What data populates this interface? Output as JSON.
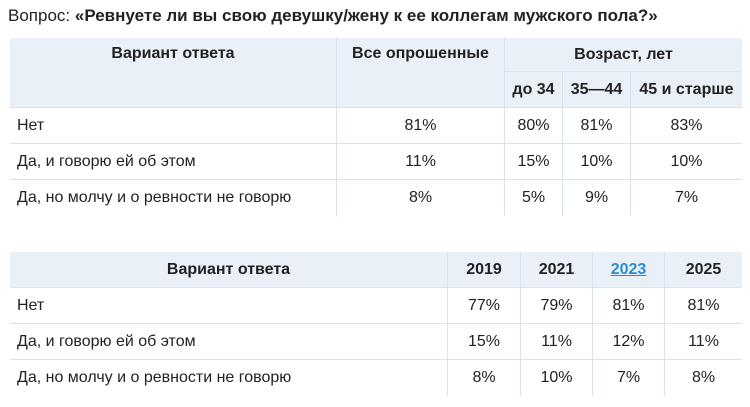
{
  "question": {
    "label": "Вопрос: ",
    "text": "«Ревнуете ли вы свою девушку/жену к ее коллегам мужского пола?»"
  },
  "table1": {
    "col_answer": "Вариант ответа",
    "col_all": "Все опрошенные",
    "col_age_group": "Возраст, лет",
    "age_columns": [
      "до 34",
      "35—44",
      "45 и старше"
    ],
    "rows": [
      {
        "label": "Нет",
        "all": "81%",
        "ages": [
          "80%",
          "81%",
          "83%"
        ]
      },
      {
        "label": "Да, и говорю ей об этом",
        "all": "11%",
        "ages": [
          "15%",
          "10%",
          "10%"
        ]
      },
      {
        "label": "Да, но молчу и о ревности не говорю",
        "all": "8%",
        "ages": [
          "5%",
          "9%",
          "7%"
        ]
      }
    ]
  },
  "table2": {
    "col_answer": "Вариант ответа",
    "years": [
      "2019",
      "2021",
      "2023",
      "2025"
    ],
    "link_color": "#2a8ccf",
    "rows": [
      {
        "label": "Нет",
        "values": [
          "77%",
          "79%",
          "81%",
          "81%"
        ]
      },
      {
        "label": "Да, и говорю ей об этом",
        "values": [
          "15%",
          "11%",
          "12%",
          "11%"
        ]
      },
      {
        "label": "Да, но молчу и о ревности не говорю",
        "values": [
          "8%",
          "10%",
          "7%",
          "8%"
        ]
      }
    ]
  }
}
